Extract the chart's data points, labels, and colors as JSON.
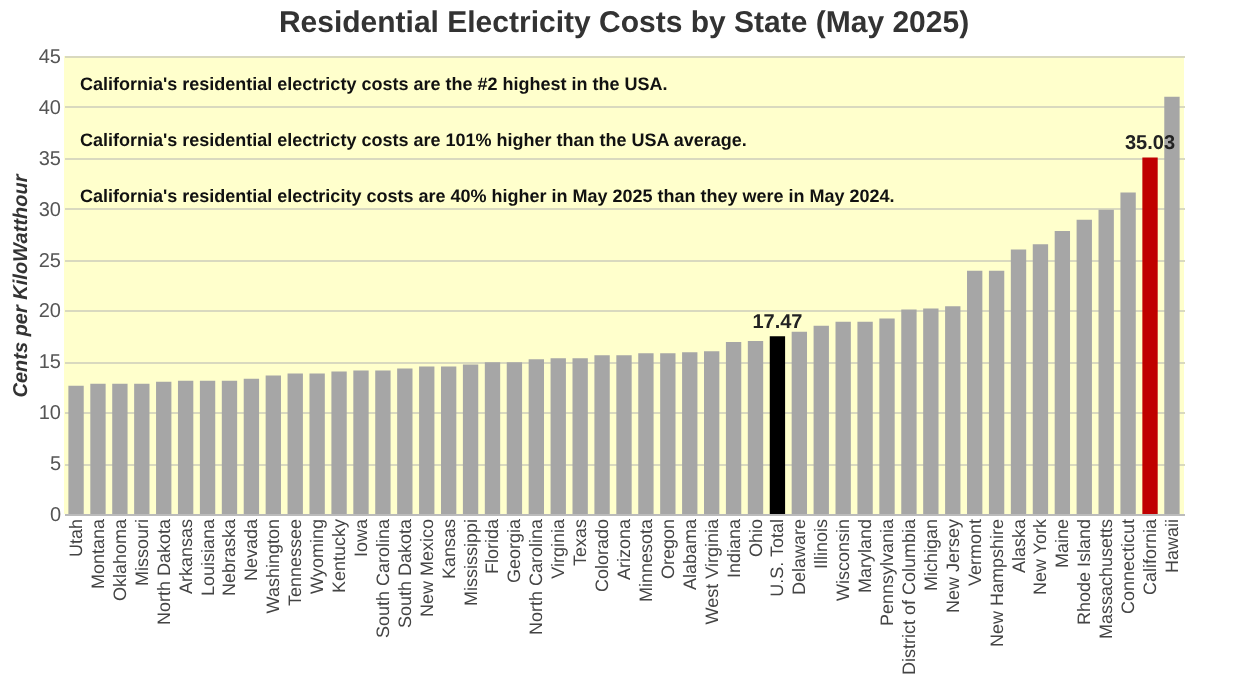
{
  "chart_data": {
    "type": "bar",
    "title": "Residential Electricity Costs by State (May 2025)",
    "ylabel": "Cents per KiloWatthour",
    "categories": [
      "Utah",
      "Montana",
      "Oklahoma",
      "Missouri",
      "North Dakota",
      "Arkansas",
      "Louisiana",
      "Nebraska",
      "Nevada",
      "Washington",
      "Tennessee",
      "Wyoming",
      "Kentucky",
      "Iowa",
      "South Carolina",
      "South Dakota",
      "New Mexico",
      "Kansas",
      "Mississippi",
      "Florida",
      "Georgia",
      "North Carolina",
      "Virginia",
      "Texas",
      "Colorado",
      "Arizona",
      "Minnesota",
      "Oregon",
      "Alabama",
      "West Virginia",
      "Indiana",
      "Ohio",
      "U.S. Total",
      "Delaware",
      "Illinois",
      "Wisconsin",
      "Maryland",
      "Pennsylvania",
      "District of Columbia",
      "Michigan",
      "New Jersey",
      "Vermont",
      "New Hampshire",
      "Alaska",
      "New York",
      "Maine",
      "Rhode Island",
      "Massachusetts",
      "Connecticut",
      "California",
      "Hawaii"
    ],
    "values": [
      12.6,
      12.8,
      12.8,
      12.8,
      13.0,
      13.1,
      13.1,
      13.1,
      13.3,
      13.6,
      13.8,
      13.8,
      14.0,
      14.1,
      14.1,
      14.3,
      14.5,
      14.5,
      14.7,
      14.9,
      14.9,
      15.2,
      15.3,
      15.3,
      15.6,
      15.6,
      15.8,
      15.8,
      15.9,
      16.0,
      16.9,
      17.0,
      17.47,
      17.9,
      18.5,
      18.9,
      18.9,
      19.2,
      20.1,
      20.2,
      20.4,
      23.9,
      23.9,
      26.0,
      26.5,
      27.8,
      28.9,
      29.9,
      31.6,
      35.03,
      41.0
    ],
    "colors": [
      "#a6a6a6",
      "#a6a6a6",
      "#a6a6a6",
      "#a6a6a6",
      "#a6a6a6",
      "#a6a6a6",
      "#a6a6a6",
      "#a6a6a6",
      "#a6a6a6",
      "#a6a6a6",
      "#a6a6a6",
      "#a6a6a6",
      "#a6a6a6",
      "#a6a6a6",
      "#a6a6a6",
      "#a6a6a6",
      "#a6a6a6",
      "#a6a6a6",
      "#a6a6a6",
      "#a6a6a6",
      "#a6a6a6",
      "#a6a6a6",
      "#a6a6a6",
      "#a6a6a6",
      "#a6a6a6",
      "#a6a6a6",
      "#a6a6a6",
      "#a6a6a6",
      "#a6a6a6",
      "#a6a6a6",
      "#a6a6a6",
      "#a6a6a6",
      "#000000",
      "#a6a6a6",
      "#a6a6a6",
      "#a6a6a6",
      "#a6a6a6",
      "#a6a6a6",
      "#a6a6a6",
      "#a6a6a6",
      "#a6a6a6",
      "#a6a6a6",
      "#a6a6a6",
      "#a6a6a6",
      "#a6a6a6",
      "#a6a6a6",
      "#a6a6a6",
      "#a6a6a6",
      "#a6a6a6",
      "#c00000",
      "#a6a6a6"
    ],
    "value_labels": [
      null,
      null,
      null,
      null,
      null,
      null,
      null,
      null,
      null,
      null,
      null,
      null,
      null,
      null,
      null,
      null,
      null,
      null,
      null,
      null,
      null,
      null,
      null,
      null,
      null,
      null,
      null,
      null,
      null,
      null,
      null,
      null,
      "17.47",
      null,
      null,
      null,
      null,
      null,
      null,
      null,
      null,
      null,
      null,
      null,
      null,
      null,
      null,
      null,
      null,
      "35.03",
      null
    ],
    "annotations": [
      "California's residential electricty costs are the #2 highest in the USA.",
      "California's residential electricty costs are 101% higher than the USA average.",
      "California's residential electricity costs are 40% higher in May 2025 than they were in May 2024."
    ],
    "ylim": [
      0,
      45
    ],
    "yticks": [
      0,
      5,
      10,
      15,
      20,
      25,
      30,
      35,
      40,
      45
    ],
    "grid": "y"
  }
}
